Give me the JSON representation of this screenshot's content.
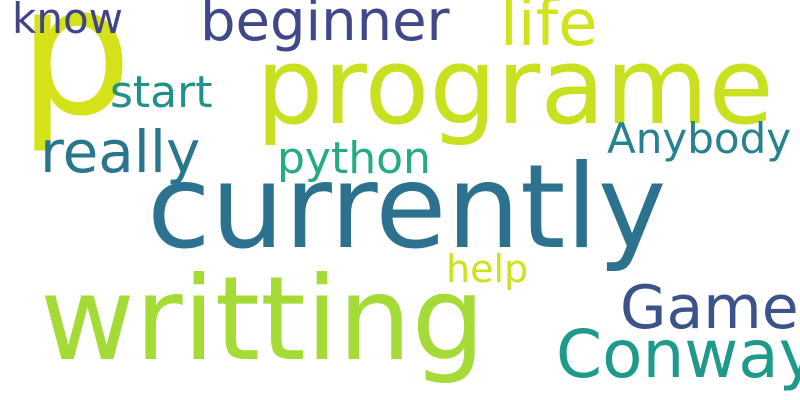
{
  "cloud": {
    "words": {
      "p": {
        "text": "p",
        "color": "#d5e21a"
      },
      "programe": {
        "text": "programe",
        "color": "#c8e020"
      },
      "currently": {
        "text": "currently",
        "color": "#2c728e"
      },
      "writting": {
        "text": "writting",
        "color": "#a5db36"
      },
      "beginner": {
        "text": "beginner",
        "color": "#3f4889"
      },
      "life": {
        "text": "life",
        "color": "#d2e21b"
      },
      "know": {
        "text": "know",
        "color": "#414487"
      },
      "start": {
        "text": "start",
        "color": "#21918c"
      },
      "really": {
        "text": "really",
        "color": "#2a768e"
      },
      "python": {
        "text": "python",
        "color": "#25ab82"
      },
      "anybody": {
        "text": "Anybody",
        "color": "#26828e"
      },
      "help": {
        "text": "help",
        "color": "#cde11d"
      },
      "game": {
        "text": "Game",
        "color": "#3b528b"
      },
      "conway": {
        "text": "Conway",
        "color": "#1f9a8a"
      }
    }
  }
}
